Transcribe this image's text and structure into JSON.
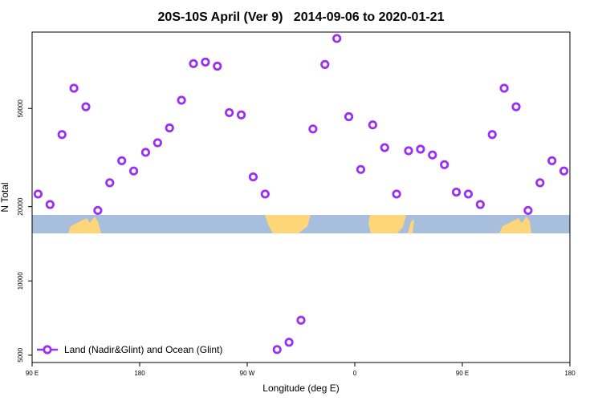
{
  "chart_data": {
    "type": "scatter",
    "title": "20S-10S April (Ver 9)   2014-09-06 to 2020-01-21",
    "x_label": "Longitude (deg E)",
    "y_label": "N Total",
    "xlim": [
      90,
      540
    ],
    "xticks": [
      {
        "value": 90,
        "label": "90 E"
      },
      {
        "value": 180,
        "label": "180"
      },
      {
        "value": 270,
        "label": "90 W"
      },
      {
        "value": 360,
        "label": "0"
      },
      {
        "value": 450,
        "label": "90 E"
      },
      {
        "value": 540,
        "label": "180"
      }
    ],
    "ylim": [
      4670,
      102000
    ],
    "ylog": true,
    "yticks": [
      5000,
      10000,
      20000,
      50000
    ],
    "legend": "bottom left",
    "series": [
      {
        "name": "Land (Nadir&Glint) and Ocean (Glint)",
        "color": "#9b30f0",
        "x": [
          95,
          105,
          115,
          125,
          135,
          145,
          155,
          165,
          175,
          185,
          195,
          205,
          215,
          225,
          235,
          245,
          255,
          265,
          275,
          285,
          295,
          305,
          315,
          325,
          335,
          345,
          355,
          365,
          375,
          385,
          395,
          405,
          415,
          425,
          435,
          445,
          455,
          465,
          475,
          485,
          495,
          505,
          515,
          525,
          535
        ],
        "values": [
          22500,
          20400,
          39200,
          60400,
          50800,
          19300,
          25000,
          30700,
          27900,
          33200,
          36300,
          41700,
          54000,
          76000,
          77100,
          74200,
          48100,
          47100,
          26400,
          22500,
          5270,
          5640,
          6930,
          41300,
          75400,
          96100,
          46300,
          28300,
          42900,
          34700,
          22500,
          33700,
          34200,
          32400,
          29600,
          22900,
          22500,
          20400,
          39200,
          60400,
          50800,
          19300,
          25000,
          30700,
          27900
        ]
      }
    ]
  }
}
